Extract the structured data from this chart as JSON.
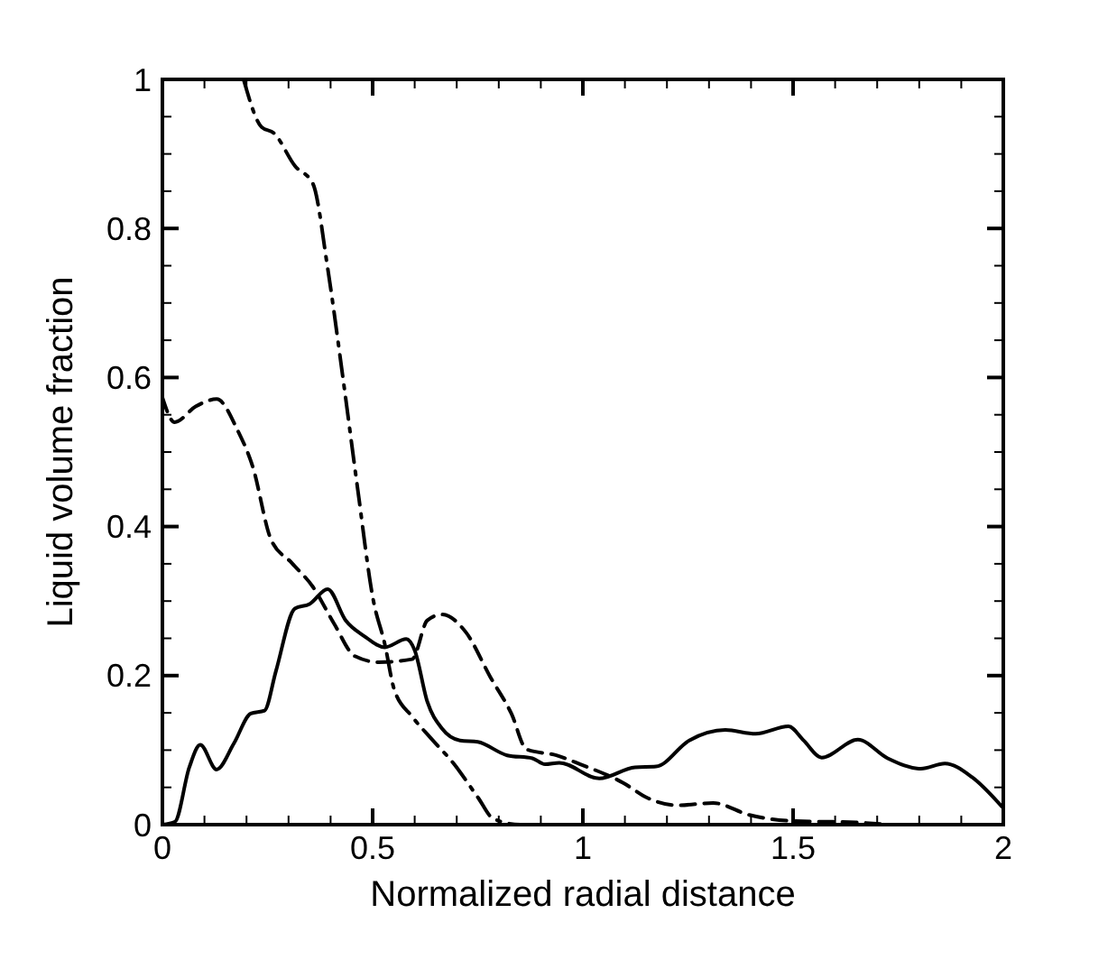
{
  "chart_data": {
    "type": "line",
    "xlabel": "Normalized radial distance",
    "ylabel": "Liquid volume fraction",
    "xlim": [
      0,
      2
    ],
    "ylim": [
      0,
      1
    ],
    "xticks": [
      0,
      {
        "value": 0.1,
        "label": null
      },
      {
        "value": 0.2,
        "label": null
      },
      {
        "value": 0.3,
        "label": null
      },
      {
        "value": 0.4,
        "label": null
      },
      0.5,
      {
        "value": 0.6,
        "label": null
      },
      {
        "value": 0.7,
        "label": null
      },
      {
        "value": 0.8,
        "label": null
      },
      {
        "value": 0.9,
        "label": null
      },
      1,
      {
        "value": 1.1,
        "label": null
      },
      {
        "value": 1.2,
        "label": null
      },
      {
        "value": 1.3,
        "label": null
      },
      {
        "value": 1.4,
        "label": null
      },
      1.5,
      {
        "value": 1.6,
        "label": null
      },
      {
        "value": 1.7,
        "label": null
      },
      {
        "value": 1.8,
        "label": null
      },
      {
        "value": 1.9,
        "label": null
      },
      2
    ],
    "yticks": [
      0,
      {
        "value": 0.05,
        "label": null
      },
      {
        "value": 0.1,
        "label": null
      },
      {
        "value": 0.15,
        "label": null
      },
      0.2,
      {
        "value": 0.25,
        "label": null
      },
      {
        "value": 0.3,
        "label": null
      },
      {
        "value": 0.35,
        "label": null
      },
      0.4,
      {
        "value": 0.45,
        "label": null
      },
      {
        "value": 0.5,
        "label": null
      },
      {
        "value": 0.55,
        "label": null
      },
      0.6,
      {
        "value": 0.65,
        "label": null
      },
      {
        "value": 0.7,
        "label": null
      },
      {
        "value": 0.75,
        "label": null
      },
      0.8,
      {
        "value": 0.85,
        "label": null
      },
      {
        "value": 0.9,
        "label": null
      },
      {
        "value": 0.95,
        "label": null
      },
      1
    ],
    "grid": false,
    "marker": "none",
    "series": [
      {
        "color": "#000000",
        "line_style": "solid",
        "x": [
          0,
          0.03,
          0.064,
          0.09,
          0.129,
          0.17,
          0.21,
          0.243,
          0.27,
          0.315,
          0.35,
          0.393,
          0.436,
          0.48,
          0.529,
          0.58,
          0.6,
          0.63,
          0.665,
          0.708,
          0.75,
          0.82,
          0.88,
          0.91,
          0.944,
          1.039,
          1.124,
          1.174,
          1.253,
          1.339,
          1.411,
          1.489,
          1.525,
          1.568,
          1.654,
          1.725,
          1.804,
          1.861,
          1.925,
          1.997
        ],
        "values": [
          0,
          0.004,
          0.077,
          0.107,
          0.074,
          0.109,
          0.149,
          0.153,
          0.206,
          0.29,
          0.296,
          0.316,
          0.274,
          0.253,
          0.238,
          0.249,
          0.234,
          0.165,
          0.129,
          0.113,
          0.111,
          0.093,
          0.089,
          0.081,
          0.083,
          0.062,
          0.077,
          0.078,
          0.113,
          0.127,
          0.122,
          0.132,
          0.113,
          0.09,
          0.114,
          0.089,
          0.075,
          0.082,
          0.064,
          0.024
        ]
      },
      {
        "color": "#000000",
        "line_style": "dashed",
        "x": [
          0,
          0.029,
          0.079,
          0.129,
          0.179,
          0.215,
          0.258,
          0.308,
          0.358,
          0.408,
          0.458,
          0.515,
          0.594,
          0.63,
          0.665,
          0.722,
          0.78,
          0.83,
          0.866,
          0.937,
          0.994,
          1.096,
          1.153,
          1.225,
          1.31,
          1.396,
          1.496,
          1.65,
          1.725
        ],
        "values": [
          0.573,
          0.54,
          0.561,
          0.571,
          0.529,
          0.48,
          0.383,
          0.351,
          0.319,
          0.27,
          0.226,
          0.218,
          0.222,
          0.274,
          0.282,
          0.258,
          0.198,
          0.149,
          0.101,
          0.093,
          0.081,
          0.056,
          0.036,
          0.026,
          0.029,
          0.013,
          0.005,
          0.003,
          0
        ]
      },
      {
        "color": "#000000",
        "line_style": "dashdot",
        "x": [
          0.193,
          0.236,
          0.265,
          0.315,
          0.358,
          0.393,
          0.429,
          0.465,
          0.501,
          0.529,
          0.551,
          0.594,
          0.637,
          0.694,
          0.751,
          0.787,
          0.851,
          0.95,
          1.05
        ],
        "values": [
          1,
          0.936,
          0.928,
          0.884,
          0.86,
          0.747,
          0.601,
          0.448,
          0.303,
          0.242,
          0.182,
          0.145,
          0.117,
          0.081,
          0.036,
          0.008,
          0,
          0,
          0
        ]
      }
    ]
  }
}
